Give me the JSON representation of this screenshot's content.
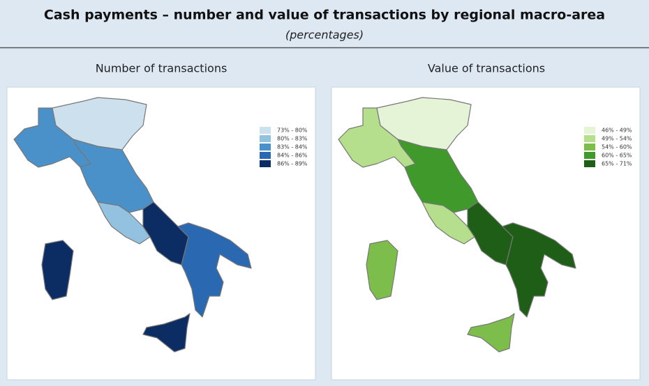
{
  "header": {
    "title": "Cash payments – number and value of transactions by regional macro-area",
    "subtitle": "(percentages)"
  },
  "maps": [
    {
      "title": "Number of transactions",
      "legend": [
        {
          "label": "73% - 80%",
          "color": "#cde0ee"
        },
        {
          "label": "80% - 83%",
          "color": "#93c1e0"
        },
        {
          "label": "83% - 84%",
          "color": "#4b91c9"
        },
        {
          "label": "84% - 86%",
          "color": "#2a68b2"
        },
        {
          "label": "86% - 89%",
          "color": "#0b2d63"
        }
      ]
    },
    {
      "title": "Value of transactions",
      "legend": [
        {
          "label": "46% - 49%",
          "color": "#e5f4d7"
        },
        {
          "label": "49% - 54%",
          "color": "#b5df8c"
        },
        {
          "label": "54% - 60%",
          "color": "#7dbd4b"
        },
        {
          "label": "60% - 65%",
          "color": "#3f9a2b"
        },
        {
          "label": "65% - 71%",
          "color": "#1f5e17"
        }
      ]
    }
  ]
}
